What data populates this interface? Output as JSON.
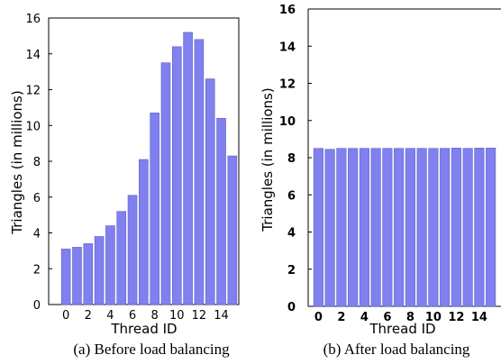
{
  "chart_data": [
    {
      "type": "bar",
      "caption": "(a) Before load balancing",
      "xlabel": "Thread ID",
      "ylabel": "Triangles (in millions)",
      "ylim": [
        0,
        16
      ],
      "yticks": [
        "0",
        "2",
        "4",
        "6",
        "8",
        "10",
        "12",
        "14",
        "16"
      ],
      "xticks": [
        "0",
        "2",
        "4",
        "6",
        "8",
        "10",
        "12",
        "14"
      ],
      "categories": [
        0,
        1,
        2,
        3,
        4,
        5,
        6,
        7,
        8,
        9,
        10,
        11,
        12,
        13,
        14,
        15
      ],
      "values": [
        3.1,
        3.2,
        3.4,
        3.8,
        4.4,
        5.2,
        6.1,
        8.1,
        10.7,
        13.5,
        14.4,
        15.2,
        14.8,
        12.6,
        10.4,
        8.3
      ],
      "bar_color": "#8080f0",
      "grid": false
    },
    {
      "type": "bar",
      "caption": "(b) After load balancing",
      "xlabel": "Thread ID",
      "ylabel": "Triangles (in millions)",
      "ylim": [
        0,
        16
      ],
      "yticks": [
        "0",
        "2",
        "4",
        "6",
        "8",
        "10",
        "12",
        "14",
        "16"
      ],
      "xticks": [
        "0",
        "2",
        "4",
        "6",
        "8",
        "10",
        "12",
        "14"
      ],
      "categories": [
        0,
        1,
        2,
        3,
        4,
        5,
        6,
        7,
        8,
        9,
        10,
        11,
        12,
        13,
        14,
        15
      ],
      "values": [
        8.5,
        8.45,
        8.5,
        8.5,
        8.5,
        8.5,
        8.5,
        8.5,
        8.5,
        8.5,
        8.5,
        8.5,
        8.52,
        8.5,
        8.52,
        8.52
      ],
      "bar_color": "#8080f0",
      "grid": false
    }
  ]
}
